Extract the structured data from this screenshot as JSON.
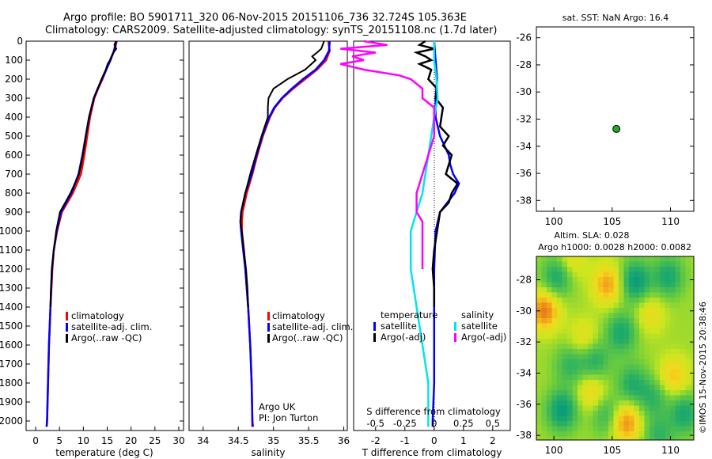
{
  "title": {
    "line1": "Argo profile: BO 5901711_320 06-Nov-2015 20151106_736 32.724S 105.363E",
    "line2": "Climatology: CARS2009. Satellite-adjusted climatology: synTS_20151108.nc (1.7d later)"
  },
  "colors": {
    "climatology": "#ff0000",
    "satellite": "#0000ff",
    "argo": "#000000",
    "sal_sat": "#00e5ee",
    "sal_argo": "#ff00ff"
  },
  "depth_axis": {
    "lim": [
      0,
      2050
    ],
    "ticks": [
      0,
      100,
      200,
      300,
      400,
      500,
      600,
      700,
      800,
      900,
      1000,
      1100,
      1200,
      1300,
      1400,
      1500,
      1600,
      1700,
      1800,
      1900,
      2000
    ]
  },
  "chart_data": [
    {
      "type": "line",
      "panel": "temperature",
      "xlabel": "temperature (deg C)",
      "xlim": [
        -2,
        31
      ],
      "xticks": [
        0,
        5,
        10,
        15,
        20,
        25,
        30
      ],
      "legend": [
        "climatology",
        "satellite-adj. clim.",
        "Argo(..raw -QC)"
      ],
      "series": [
        {
          "name": "climatology",
          "color_key": "climatology",
          "depth": [
            0,
            50,
            100,
            150,
            200,
            250,
            300,
            400,
            500,
            600,
            700,
            800,
            900,
            1000,
            1100,
            1200,
            1400,
            1600,
            1800,
            2000,
            2030
          ],
          "values": [
            17.0,
            16.5,
            15.6,
            14.8,
            14.0,
            13.1,
            12.3,
            11.4,
            10.8,
            10.2,
            9.5,
            7.8,
            5.5,
            4.5,
            3.8,
            3.5,
            3.1,
            2.8,
            2.6,
            2.4,
            2.3
          ]
        },
        {
          "name": "satellite-adj. clim.",
          "color_key": "satellite",
          "depth": [
            0,
            50,
            100,
            150,
            200,
            250,
            300,
            400,
            500,
            600,
            700,
            800,
            900,
            1000,
            1100,
            1200,
            1400,
            1600,
            1800,
            2000,
            2030
          ],
          "values": [
            16.9,
            16.4,
            15.7,
            14.8,
            13.9,
            13.0,
            12.2,
            11.2,
            10.5,
            9.8,
            9.0,
            7.5,
            5.3,
            4.4,
            3.8,
            3.4,
            3.1,
            2.8,
            2.6,
            2.4,
            2.3
          ]
        },
        {
          "name": "Argo(..raw -QC)",
          "color_key": "argo",
          "depth": [
            0,
            20,
            40,
            60,
            80,
            100,
            120,
            150,
            200,
            250,
            300,
            400,
            500,
            600,
            700,
            800,
            900,
            1000,
            1100,
            1200,
            1300,
            1400
          ],
          "values": [
            16.8,
            16.5,
            16.9,
            16.3,
            15.9,
            15.6,
            15.1,
            14.7,
            13.8,
            13.0,
            12.2,
            11.2,
            10.5,
            9.9,
            9.1,
            7.3,
            5.1,
            4.3,
            3.8,
            3.4,
            3.2,
            3.1
          ]
        }
      ]
    },
    {
      "type": "line",
      "panel": "salinity",
      "xlabel": "salinity",
      "xlim": [
        33.8,
        36.05
      ],
      "xticks": [
        34,
        34.5,
        35,
        35.5,
        36
      ],
      "legend": [
        "climatology",
        "satellite-adj. clim.",
        "Argo(..raw -QC)"
      ],
      "annotation": [
        "Argo UK",
        "PI: Jon Turton"
      ],
      "series": [
        {
          "name": "climatology",
          "color_key": "climatology",
          "depth": [
            0,
            50,
            100,
            150,
            200,
            250,
            300,
            350,
            400,
            500,
            600,
            700,
            800,
            900,
            950,
            1000,
            1100,
            1200,
            1400,
            1600,
            1800,
            2000,
            2030
          ],
          "values": [
            35.78,
            35.8,
            35.75,
            35.62,
            35.45,
            35.28,
            35.13,
            35.02,
            34.95,
            34.85,
            34.77,
            34.7,
            34.62,
            34.56,
            34.55,
            34.55,
            34.58,
            34.6,
            34.64,
            34.67,
            34.69,
            34.7,
            34.71
          ]
        },
        {
          "name": "satellite-adj. clim.",
          "color_key": "satellite",
          "depth": [
            0,
            50,
            100,
            150,
            200,
            250,
            300,
            350,
            400,
            500,
            600,
            700,
            800,
            900,
            950,
            1000,
            1100,
            1200,
            1400,
            1600,
            1800,
            2000,
            2030
          ],
          "values": [
            35.8,
            35.79,
            35.72,
            35.6,
            35.42,
            35.26,
            35.12,
            35.01,
            34.94,
            34.84,
            34.76,
            34.69,
            34.6,
            34.54,
            34.53,
            34.54,
            34.57,
            34.6,
            34.64,
            34.67,
            34.69,
            34.7,
            34.7
          ]
        },
        {
          "name": "Argo(..raw -QC)",
          "color_key": "argo",
          "depth": [
            0,
            20,
            40,
            60,
            80,
            100,
            150,
            200,
            250,
            300,
            350,
            400,
            500,
            600,
            700,
            800,
            900,
            950,
            1000,
            1100,
            1200,
            1300,
            1400
          ],
          "values": [
            35.72,
            35.7,
            35.68,
            35.62,
            35.55,
            35.6,
            35.45,
            35.2,
            35.0,
            34.93,
            34.92,
            34.92,
            34.83,
            34.75,
            34.67,
            34.6,
            34.54,
            34.53,
            34.55,
            34.58,
            34.61,
            34.63,
            34.64
          ]
        }
      ]
    },
    {
      "type": "line",
      "panel": "difference",
      "xlabel": "T difference from climatology",
      "xlabel_top": "S difference from climatology",
      "xlim": [
        -2.75,
        2.6
      ],
      "xticks_T": [
        -2,
        -1,
        0,
        1,
        2
      ],
      "xticks_S": [
        -0.5,
        -0.25,
        0,
        0.25,
        0.5
      ],
      "legend_temperature": [
        "temperature",
        "satellite",
        "Argo(-adj)"
      ],
      "legend_salinity": [
        "salinity",
        "satellite",
        "Argo(-adj)"
      ],
      "series": [
        {
          "name": "temperature satellite",
          "color_key": "satellite",
          "depth": [
            0,
            100,
            200,
            300,
            400,
            500,
            600,
            650,
            700,
            750,
            800,
            900,
            1000,
            1200,
            1400,
            1600,
            1800,
            2000,
            2030
          ],
          "values": [
            0.0,
            0.05,
            0.1,
            0.05,
            0.05,
            0.2,
            0.5,
            0.55,
            0.65,
            0.85,
            0.7,
            0.2,
            0.05,
            0.0,
            0.0,
            0.0,
            0.0,
            -0.05,
            -0.05
          ]
        },
        {
          "name": "temperature Argo(-adj)",
          "color_key": "argo",
          "depth": [
            0,
            20,
            40,
            60,
            80,
            100,
            120,
            150,
            200,
            250,
            300,
            350,
            400,
            450,
            500,
            550,
            600,
            650,
            700,
            750,
            800,
            850,
            900,
            1000,
            1100,
            1200,
            1300,
            1400
          ],
          "values": [
            -0.3,
            -0.5,
            0.0,
            -0.6,
            -0.3,
            -0.1,
            -0.5,
            -0.1,
            -0.2,
            0.1,
            0.05,
            0.3,
            0.25,
            0.2,
            0.5,
            0.3,
            0.6,
            0.5,
            0.4,
            0.8,
            0.6,
            0.5,
            0.2,
            0.1,
            0.0,
            -0.05,
            0.0,
            0.0
          ]
        },
        {
          "name": "salinity satellite",
          "color_key": "sal_sat",
          "depth": [
            0,
            100,
            200,
            300,
            400,
            600,
            800,
            900,
            1000,
            1100,
            1200,
            1400,
            1600,
            1800,
            2000,
            2030
          ],
          "values": [
            0.0,
            0.0,
            0.02,
            0.03,
            0.0,
            -0.05,
            -0.1,
            -0.15,
            -0.2,
            -0.2,
            -0.2,
            -0.15,
            -0.1,
            -0.05,
            -0.05,
            -0.05
          ]
        },
        {
          "name": "salinity Argo(-adj)",
          "color_key": "sal_argo",
          "depth": [
            0,
            20,
            40,
            60,
            80,
            100,
            120,
            150,
            180,
            200,
            250,
            300,
            350,
            400,
            500,
            600,
            700,
            800,
            900,
            950,
            1000,
            1100,
            1200
          ],
          "values": [
            -0.6,
            -0.4,
            -0.8,
            -0.5,
            -0.7,
            -0.6,
            -0.8,
            -0.6,
            -0.3,
            -0.2,
            -0.1,
            -0.1,
            0.0,
            0.0,
            0.0,
            -0.05,
            -0.1,
            -0.15,
            -0.15,
            -0.1,
            -0.1,
            -0.1,
            -0.1
          ]
        }
      ]
    },
    {
      "type": "scatter",
      "panel": "location map",
      "title": "sat. SST: NaN Argo: 16.4",
      "xlim": [
        98.5,
        112
      ],
      "ylim": [
        -38.8,
        -25.2
      ],
      "xticks": [
        100,
        105,
        110
      ],
      "yticks": [
        -26,
        -28,
        -30,
        -32,
        -34,
        -36,
        -38
      ],
      "points": [
        {
          "x": 105.363,
          "y": -32.724,
          "color": "#22aa22"
        }
      ]
    },
    {
      "type": "heatmap",
      "panel": "altimetry SLA",
      "title": "Altim. SLA: 0.028",
      "subtitle": "Argo h1000: 0.0028 h2000: 0.0082",
      "xlim": [
        98.5,
        112
      ],
      "ylim": [
        -38.3,
        -26.5
      ],
      "xticks": [
        100,
        105,
        110
      ],
      "yticks": [
        -28,
        -30,
        -32,
        -34,
        -36,
        -38
      ],
      "blobs": [
        {
          "lon": 99.2,
          "lat": -30.0,
          "v": 1.0
        },
        {
          "lon": 104.6,
          "lat": -28.3,
          "v": 0.8
        },
        {
          "lon": 108.3,
          "lat": -30.2,
          "v": 0.4
        },
        {
          "lon": 106.2,
          "lat": -37.2,
          "v": 0.9
        },
        {
          "lon": 102.6,
          "lat": -31.8,
          "v": 0.4
        },
        {
          "lon": 103.2,
          "lat": -35.2,
          "v": 0.5
        },
        {
          "lon": 110.3,
          "lat": -34.2,
          "v": 0.6
        },
        {
          "lon": 101.5,
          "lat": -26.8,
          "v": 0.4
        },
        {
          "lon": 100.3,
          "lat": -27.8,
          "v": -0.7
        },
        {
          "lon": 107.0,
          "lat": -28.1,
          "v": -0.9
        },
        {
          "lon": 109.8,
          "lat": -27.8,
          "v": -0.7
        },
        {
          "lon": 103.5,
          "lat": -33.2,
          "v": -0.6
        },
        {
          "lon": 105.8,
          "lat": -31.4,
          "v": -0.7
        },
        {
          "lon": 106.7,
          "lat": -34.7,
          "v": -0.6
        },
        {
          "lon": 101.4,
          "lat": -33.5,
          "v": -0.5
        },
        {
          "lon": 108.5,
          "lat": -35.6,
          "v": -0.5
        },
        {
          "lon": 100.7,
          "lat": -36.4,
          "v": -0.9
        },
        {
          "lon": 104.5,
          "lat": -36.7,
          "v": -0.5
        },
        {
          "lon": 111.2,
          "lat": -36.6,
          "v": -0.7
        },
        {
          "lon": 109.0,
          "lat": -38.0,
          "v": -0.5
        }
      ]
    }
  ],
  "credit": "©IMOS 15-Nov-2015 20:38:46"
}
